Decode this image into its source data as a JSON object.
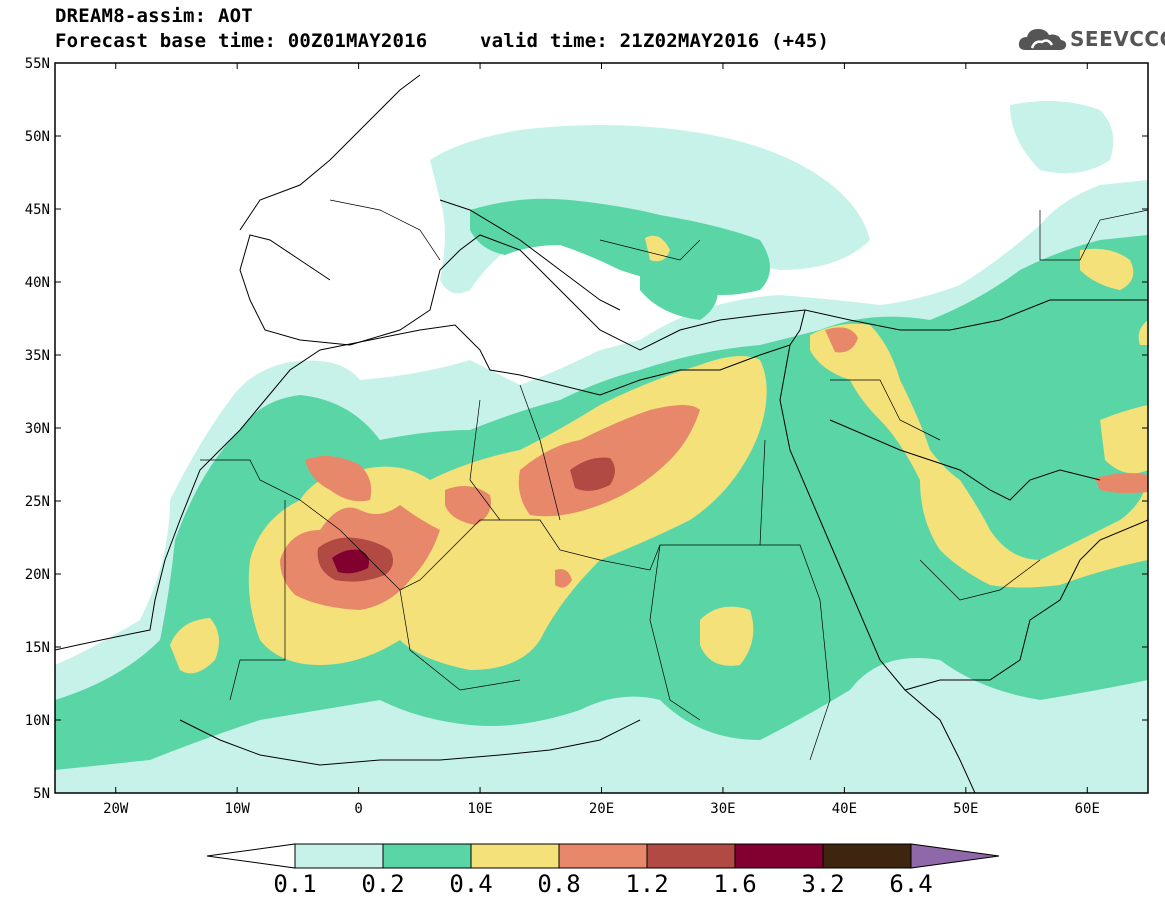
{
  "header": {
    "title": "DREAM8-assim: AOT",
    "base_time": "Forecast base time: 00Z01MAY2016",
    "valid_time": "valid time: 21Z02MAY2016 (+45)"
  },
  "logo": {
    "text": "SEEVCCC"
  },
  "map": {
    "lat_labels": [
      "55N",
      "50N",
      "45N",
      "40N",
      "35N",
      "30N",
      "25N",
      "20N",
      "15N",
      "10N",
      "5N"
    ],
    "lon_labels": [
      "20W",
      "10W",
      "0",
      "10E",
      "20E",
      "30E",
      "40E",
      "50E",
      "60E"
    ],
    "lat_range": [
      5,
      55
    ],
    "lon_range": [
      -25,
      65
    ]
  },
  "colorbar": {
    "labels": [
      "0.1",
      "0.2",
      "0.4",
      "0.8",
      "1.2",
      "1.6",
      "3.2",
      "6.4"
    ],
    "colors": [
      "#c7f2ea",
      "#5ad6a6",
      "#f5e17a",
      "#e8886a",
      "#b14a42",
      "#820030",
      "#3d2510",
      "#8e68a8"
    ]
  },
  "field_colors": {
    "c1": "#c7f2ea",
    "c2": "#5ad6a6",
    "c3": "#f5e17a",
    "c4": "#e8886a",
    "c5": "#b14a42",
    "c6": "#820030"
  }
}
